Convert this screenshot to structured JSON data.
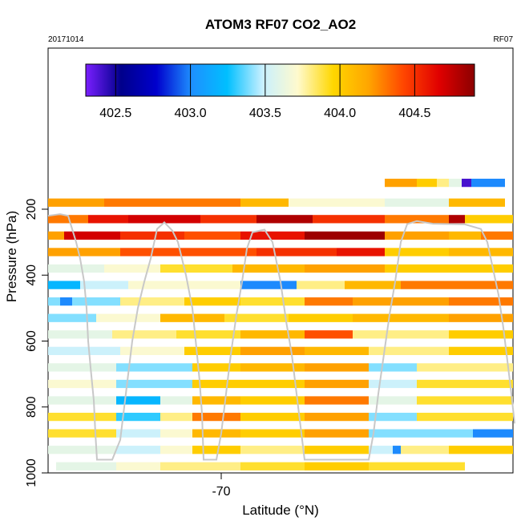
{
  "header": {
    "title": "ATOM3 RF07 CO2_AO2",
    "date": "20171014",
    "flight": "RF07"
  },
  "chart_data": {
    "type": "heatmap",
    "title": "ATOM3 RF07 CO2_AO2",
    "xlabel": "Latitude (°N)",
    "ylabel": "Pressure (hPa)",
    "x_ticks": [
      -70
    ],
    "y_ticks": [
      200,
      400,
      600,
      800,
      1000
    ],
    "ylim": [
      1000,
      0
    ],
    "y_axis_reversed": true,
    "colorbar": {
      "ticks": [
        "402.5",
        "403.0",
        "403.5",
        "404.0",
        "404.5"
      ],
      "range": [
        402.3,
        404.9
      ],
      "colors": [
        "#7a1fff",
        "#00008b",
        "#0000cd",
        "#1e90ff",
        "#00bfff",
        "#c8f0ff",
        "#fffacd",
        "#ffd700",
        "#ffa500",
        "#ff4500",
        "#e00000",
        "#8b0000"
      ],
      "position": "top"
    },
    "grid": false,
    "rows": [
      {
        "p": 120,
        "h": 25,
        "cells": [
          [
            480,
            520,
            404.2
          ],
          [
            520,
            545,
            404.0
          ],
          [
            545,
            560,
            403.8
          ],
          [
            560,
            576,
            403.6
          ],
          [
            576,
            588,
            402.4
          ],
          [
            588,
            630,
            403.0
          ]
        ]
      },
      {
        "p": 180,
        "h": 25,
        "cells": [
          [
            60,
            130,
            404.2
          ],
          [
            130,
            300,
            404.3
          ],
          [
            300,
            360,
            404.1
          ],
          [
            360,
            480,
            403.7
          ],
          [
            480,
            560,
            403.6
          ],
          [
            560,
            630,
            404.1
          ]
        ]
      },
      {
        "p": 230,
        "h": 25,
        "cells": [
          [
            60,
            110,
            404.3
          ],
          [
            110,
            160,
            404.6
          ],
          [
            160,
            250,
            404.7
          ],
          [
            250,
            320,
            404.5
          ],
          [
            320,
            390,
            404.8
          ],
          [
            390,
            480,
            404.5
          ],
          [
            480,
            560,
            404.3
          ],
          [
            560,
            580,
            404.8
          ],
          [
            580,
            640,
            404.0
          ]
        ]
      },
      {
        "p": 280,
        "h": 25,
        "cells": [
          [
            60,
            80,
            404.2
          ],
          [
            80,
            150,
            404.7
          ],
          [
            150,
            230,
            404.5
          ],
          [
            230,
            300,
            404.4
          ],
          [
            300,
            380,
            404.6
          ],
          [
            380,
            480,
            404.85
          ],
          [
            480,
            560,
            404.2
          ],
          [
            560,
            600,
            404.1
          ],
          [
            600,
            640,
            404.3
          ]
        ]
      },
      {
        "p": 330,
        "h": 25,
        "cells": [
          [
            60,
            150,
            404.2
          ],
          [
            150,
            220,
            404.4
          ],
          [
            220,
            320,
            404.4
          ],
          [
            320,
            420,
            404.5
          ],
          [
            420,
            480,
            404.6
          ],
          [
            480,
            560,
            404.0
          ],
          [
            560,
            640,
            404.1
          ]
        ]
      },
      {
        "p": 380,
        "h": 25,
        "cells": [
          [
            60,
            130,
            403.6
          ],
          [
            130,
            200,
            403.7
          ],
          [
            200,
            290,
            403.9
          ],
          [
            290,
            380,
            404.1
          ],
          [
            380,
            480,
            404.2
          ],
          [
            480,
            560,
            404.0
          ],
          [
            560,
            640,
            404.0
          ]
        ]
      },
      {
        "p": 430,
        "h": 25,
        "cells": [
          [
            60,
            100,
            403.2
          ],
          [
            100,
            160,
            403.5
          ],
          [
            160,
            300,
            403.7
          ],
          [
            300,
            370,
            403.0
          ],
          [
            370,
            430,
            403.8
          ],
          [
            430,
            500,
            404.1
          ],
          [
            500,
            640,
            404.3
          ]
        ]
      },
      {
        "p": 480,
        "h": 25,
        "cells": [
          [
            60,
            75,
            403.4
          ],
          [
            75,
            90,
            403.0
          ],
          [
            90,
            150,
            403.4
          ],
          [
            150,
            230,
            403.8
          ],
          [
            230,
            300,
            404.0
          ],
          [
            300,
            380,
            403.9
          ],
          [
            380,
            440,
            404.3
          ],
          [
            440,
            560,
            404.2
          ],
          [
            560,
            640,
            404.3
          ]
        ]
      },
      {
        "p": 530,
        "h": 25,
        "cells": [
          [
            60,
            120,
            403.4
          ],
          [
            120,
            200,
            403.7
          ],
          [
            200,
            280,
            404.1
          ],
          [
            280,
            360,
            403.9
          ],
          [
            360,
            440,
            404.0
          ],
          [
            440,
            560,
            404.1
          ],
          [
            560,
            640,
            404.2
          ]
        ]
      },
      {
        "p": 580,
        "h": 25,
        "cells": [
          [
            60,
            140,
            403.6
          ],
          [
            140,
            220,
            403.8
          ],
          [
            220,
            300,
            403.9
          ],
          [
            300,
            380,
            404.1
          ],
          [
            380,
            440,
            404.4
          ],
          [
            440,
            560,
            403.8
          ],
          [
            560,
            640,
            404.0
          ]
        ]
      },
      {
        "p": 630,
        "h": 25,
        "cells": [
          [
            60,
            150,
            403.5
          ],
          [
            150,
            230,
            403.7
          ],
          [
            230,
            300,
            404.0
          ],
          [
            300,
            380,
            404.2
          ],
          [
            380,
            460,
            404.1
          ],
          [
            460,
            560,
            403.8
          ],
          [
            560,
            640,
            404.0
          ]
        ]
      },
      {
        "p": 680,
        "h": 25,
        "cells": [
          [
            60,
            145,
            403.6
          ],
          [
            145,
            240,
            403.4
          ],
          [
            240,
            300,
            404.0
          ],
          [
            300,
            380,
            404.1
          ],
          [
            380,
            460,
            404.2
          ],
          [
            460,
            520,
            403.4
          ],
          [
            520,
            640,
            403.8
          ]
        ]
      },
      {
        "p": 730,
        "h": 25,
        "cells": [
          [
            60,
            145,
            403.7
          ],
          [
            145,
            240,
            403.4
          ],
          [
            240,
            300,
            404.0
          ],
          [
            300,
            380,
            404.0
          ],
          [
            380,
            460,
            404.2
          ],
          [
            460,
            520,
            403.5
          ],
          [
            520,
            640,
            403.9
          ]
        ]
      },
      {
        "p": 780,
        "h": 25,
        "cells": [
          [
            60,
            145,
            403.6
          ],
          [
            145,
            200,
            403.2
          ],
          [
            200,
            240,
            403.6
          ],
          [
            240,
            300,
            404.1
          ],
          [
            300,
            380,
            404.0
          ],
          [
            380,
            460,
            404.3
          ],
          [
            460,
            520,
            403.6
          ],
          [
            520,
            640,
            403.9
          ]
        ]
      },
      {
        "p": 830,
        "h": 25,
        "cells": [
          [
            60,
            145,
            403.9
          ],
          [
            145,
            200,
            403.3
          ],
          [
            200,
            240,
            403.8
          ],
          [
            240,
            300,
            404.3
          ],
          [
            300,
            380,
            404.0
          ],
          [
            380,
            460,
            404.2
          ],
          [
            460,
            520,
            403.4
          ],
          [
            520,
            640,
            403.9
          ]
        ]
      },
      {
        "p": 880,
        "h": 25,
        "cells": [
          [
            60,
            145,
            403.9
          ],
          [
            145,
            200,
            403.5
          ],
          [
            200,
            240,
            403.7
          ],
          [
            240,
            300,
            404.1
          ],
          [
            300,
            380,
            404.0
          ],
          [
            380,
            460,
            404.2
          ],
          [
            460,
            590,
            403.4
          ],
          [
            590,
            640,
            403.0
          ]
        ]
      },
      {
        "p": 930,
        "h": 25,
        "cells": [
          [
            60,
            145,
            403.6
          ],
          [
            145,
            200,
            403.5
          ],
          [
            200,
            240,
            403.7
          ],
          [
            240,
            300,
            404.0
          ],
          [
            300,
            380,
            403.8
          ],
          [
            380,
            460,
            404.0
          ],
          [
            460,
            490,
            403.5
          ],
          [
            490,
            500,
            403.0
          ],
          [
            500,
            560,
            403.8
          ],
          [
            560,
            640,
            404.0
          ]
        ]
      },
      {
        "p": 980,
        "h": 25,
        "cells": [
          [
            70,
            145,
            403.6
          ],
          [
            145,
            200,
            403.7
          ],
          [
            200,
            240,
            403.8
          ],
          [
            240,
            300,
            403.8
          ],
          [
            300,
            380,
            403.9
          ],
          [
            380,
            460,
            404.0
          ],
          [
            460,
            580,
            403.9
          ]
        ]
      }
    ],
    "flight_track": [
      [
        [
          60,
          220
        ],
        [
          75,
          215
        ],
        [
          85,
          220
        ],
        [
          95,
          300
        ],
        [
          100,
          350
        ],
        [
          105,
          420
        ],
        [
          108,
          500
        ],
        [
          110,
          600
        ],
        [
          113,
          680
        ],
        [
          117,
          780
        ],
        [
          119,
          880
        ],
        [
          121,
          960
        ],
        [
          140,
          960
        ],
        [
          150,
          900
        ],
        [
          155,
          800
        ],
        [
          160,
          700
        ],
        [
          165,
          600
        ],
        [
          172,
          500
        ],
        [
          180,
          420
        ],
        [
          188,
          350
        ],
        [
          196,
          260
        ],
        [
          205,
          240
        ],
        [
          215,
          265
        ],
        [
          222,
          300
        ],
        [
          232,
          400
        ],
        [
          240,
          500
        ],
        [
          245,
          620
        ],
        [
          249,
          720
        ],
        [
          252,
          820
        ],
        [
          254,
          960
        ],
        [
          270,
          960
        ],
        [
          276,
          880
        ],
        [
          282,
          760
        ],
        [
          288,
          640
        ],
        [
          295,
          520
        ],
        [
          302,
          420
        ],
        [
          308,
          320
        ],
        [
          315,
          270
        ],
        [
          330,
          262
        ],
        [
          340,
          300
        ],
        [
          350,
          420
        ],
        [
          357,
          540
        ],
        [
          364,
          640
        ],
        [
          370,
          760
        ],
        [
          376,
          880
        ],
        [
          380,
          960
        ],
        [
          460,
          960
        ],
        [
          466,
          880
        ],
        [
          472,
          760
        ],
        [
          479,
          640
        ],
        [
          486,
          520
        ],
        [
          493,
          420
        ],
        [
          500,
          300
        ],
        [
          508,
          245
        ],
        [
          520,
          236
        ],
        [
          540,
          244
        ],
        [
          560,
          245
        ],
        [
          580,
          246
        ],
        [
          600,
          260
        ],
        [
          608,
          300
        ],
        [
          615,
          380
        ],
        [
          622,
          460
        ],
        [
          628,
          560
        ],
        [
          633,
          660
        ],
        [
          638,
          760
        ],
        [
          642,
          850
        ]
      ]
    ]
  }
}
